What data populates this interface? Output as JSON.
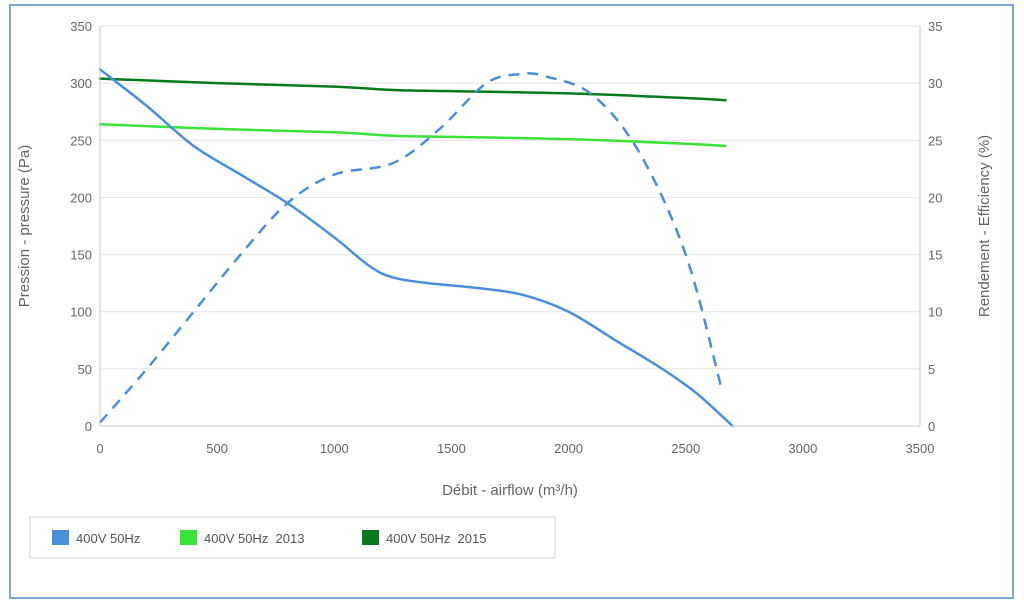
{
  "chart_data": {
    "type": "line",
    "title": "",
    "xlabel": "Débit - airflow (m³/h)",
    "ylabel_left": "Pression - pressure (Pa)",
    "ylabel_right": "Rendement - Efficiency (%)",
    "xlim": [
      0,
      3500
    ],
    "ylim_left": [
      0,
      350
    ],
    "ylim_right": [
      0,
      35
    ],
    "xticks": [
      "0",
      "500",
      "1000",
      "1500",
      "2000",
      "2500",
      "3000",
      "3500"
    ],
    "yticks_left": [
      "0",
      "50",
      "100",
      "150",
      "200",
      "250",
      "300",
      "350"
    ],
    "yticks_right": [
      "0",
      "5",
      "10",
      "15",
      "20",
      "25",
      "30",
      "35"
    ],
    "grid": true,
    "legend_position": "bottom-left",
    "series": [
      {
        "name": "400V 50Hz",
        "axis": "left",
        "style": "solid",
        "color": "#4a8fdc",
        "x": [
          0,
          200,
          400,
          600,
          800,
          1000,
          1150,
          1250,
          1400,
          1600,
          1800,
          2000,
          2200,
          2400,
          2550,
          2700
        ],
        "y": [
          312,
          280,
          245,
          220,
          195,
          165,
          140,
          130,
          125,
          121,
          115,
          100,
          75,
          50,
          28,
          0
        ]
      },
      {
        "name": "",
        "axis": "right",
        "style": "dashed",
        "color": "#4a8fdc",
        "x": [
          0,
          200,
          400,
          600,
          800,
          1000,
          1250,
          1450,
          1650,
          1800,
          1900,
          2100,
          2300,
          2500,
          2650
        ],
        "y": [
          0.3,
          5,
          10,
          15,
          19.5,
          22,
          23,
          26,
          30,
          30.8,
          30.6,
          29,
          24,
          15,
          3.5
        ]
      },
      {
        "name": "400V 50Hz  2013",
        "axis": "left",
        "style": "solid",
        "color": "#3ae23a",
        "x": [
          0,
          500,
          1000,
          1250,
          1500,
          2000,
          2500,
          2670
        ],
        "y": [
          264,
          260,
          257,
          254,
          253,
          251,
          247,
          245
        ]
      },
      {
        "name": "400V 50Hz  2015",
        "axis": "left",
        "style": "solid",
        "color": "#0a7a1e",
        "x": [
          0,
          500,
          1000,
          1250,
          1500,
          2000,
          2500,
          2670
        ],
        "y": [
          304,
          300,
          297,
          294,
          293,
          291,
          287,
          285
        ]
      }
    ]
  }
}
